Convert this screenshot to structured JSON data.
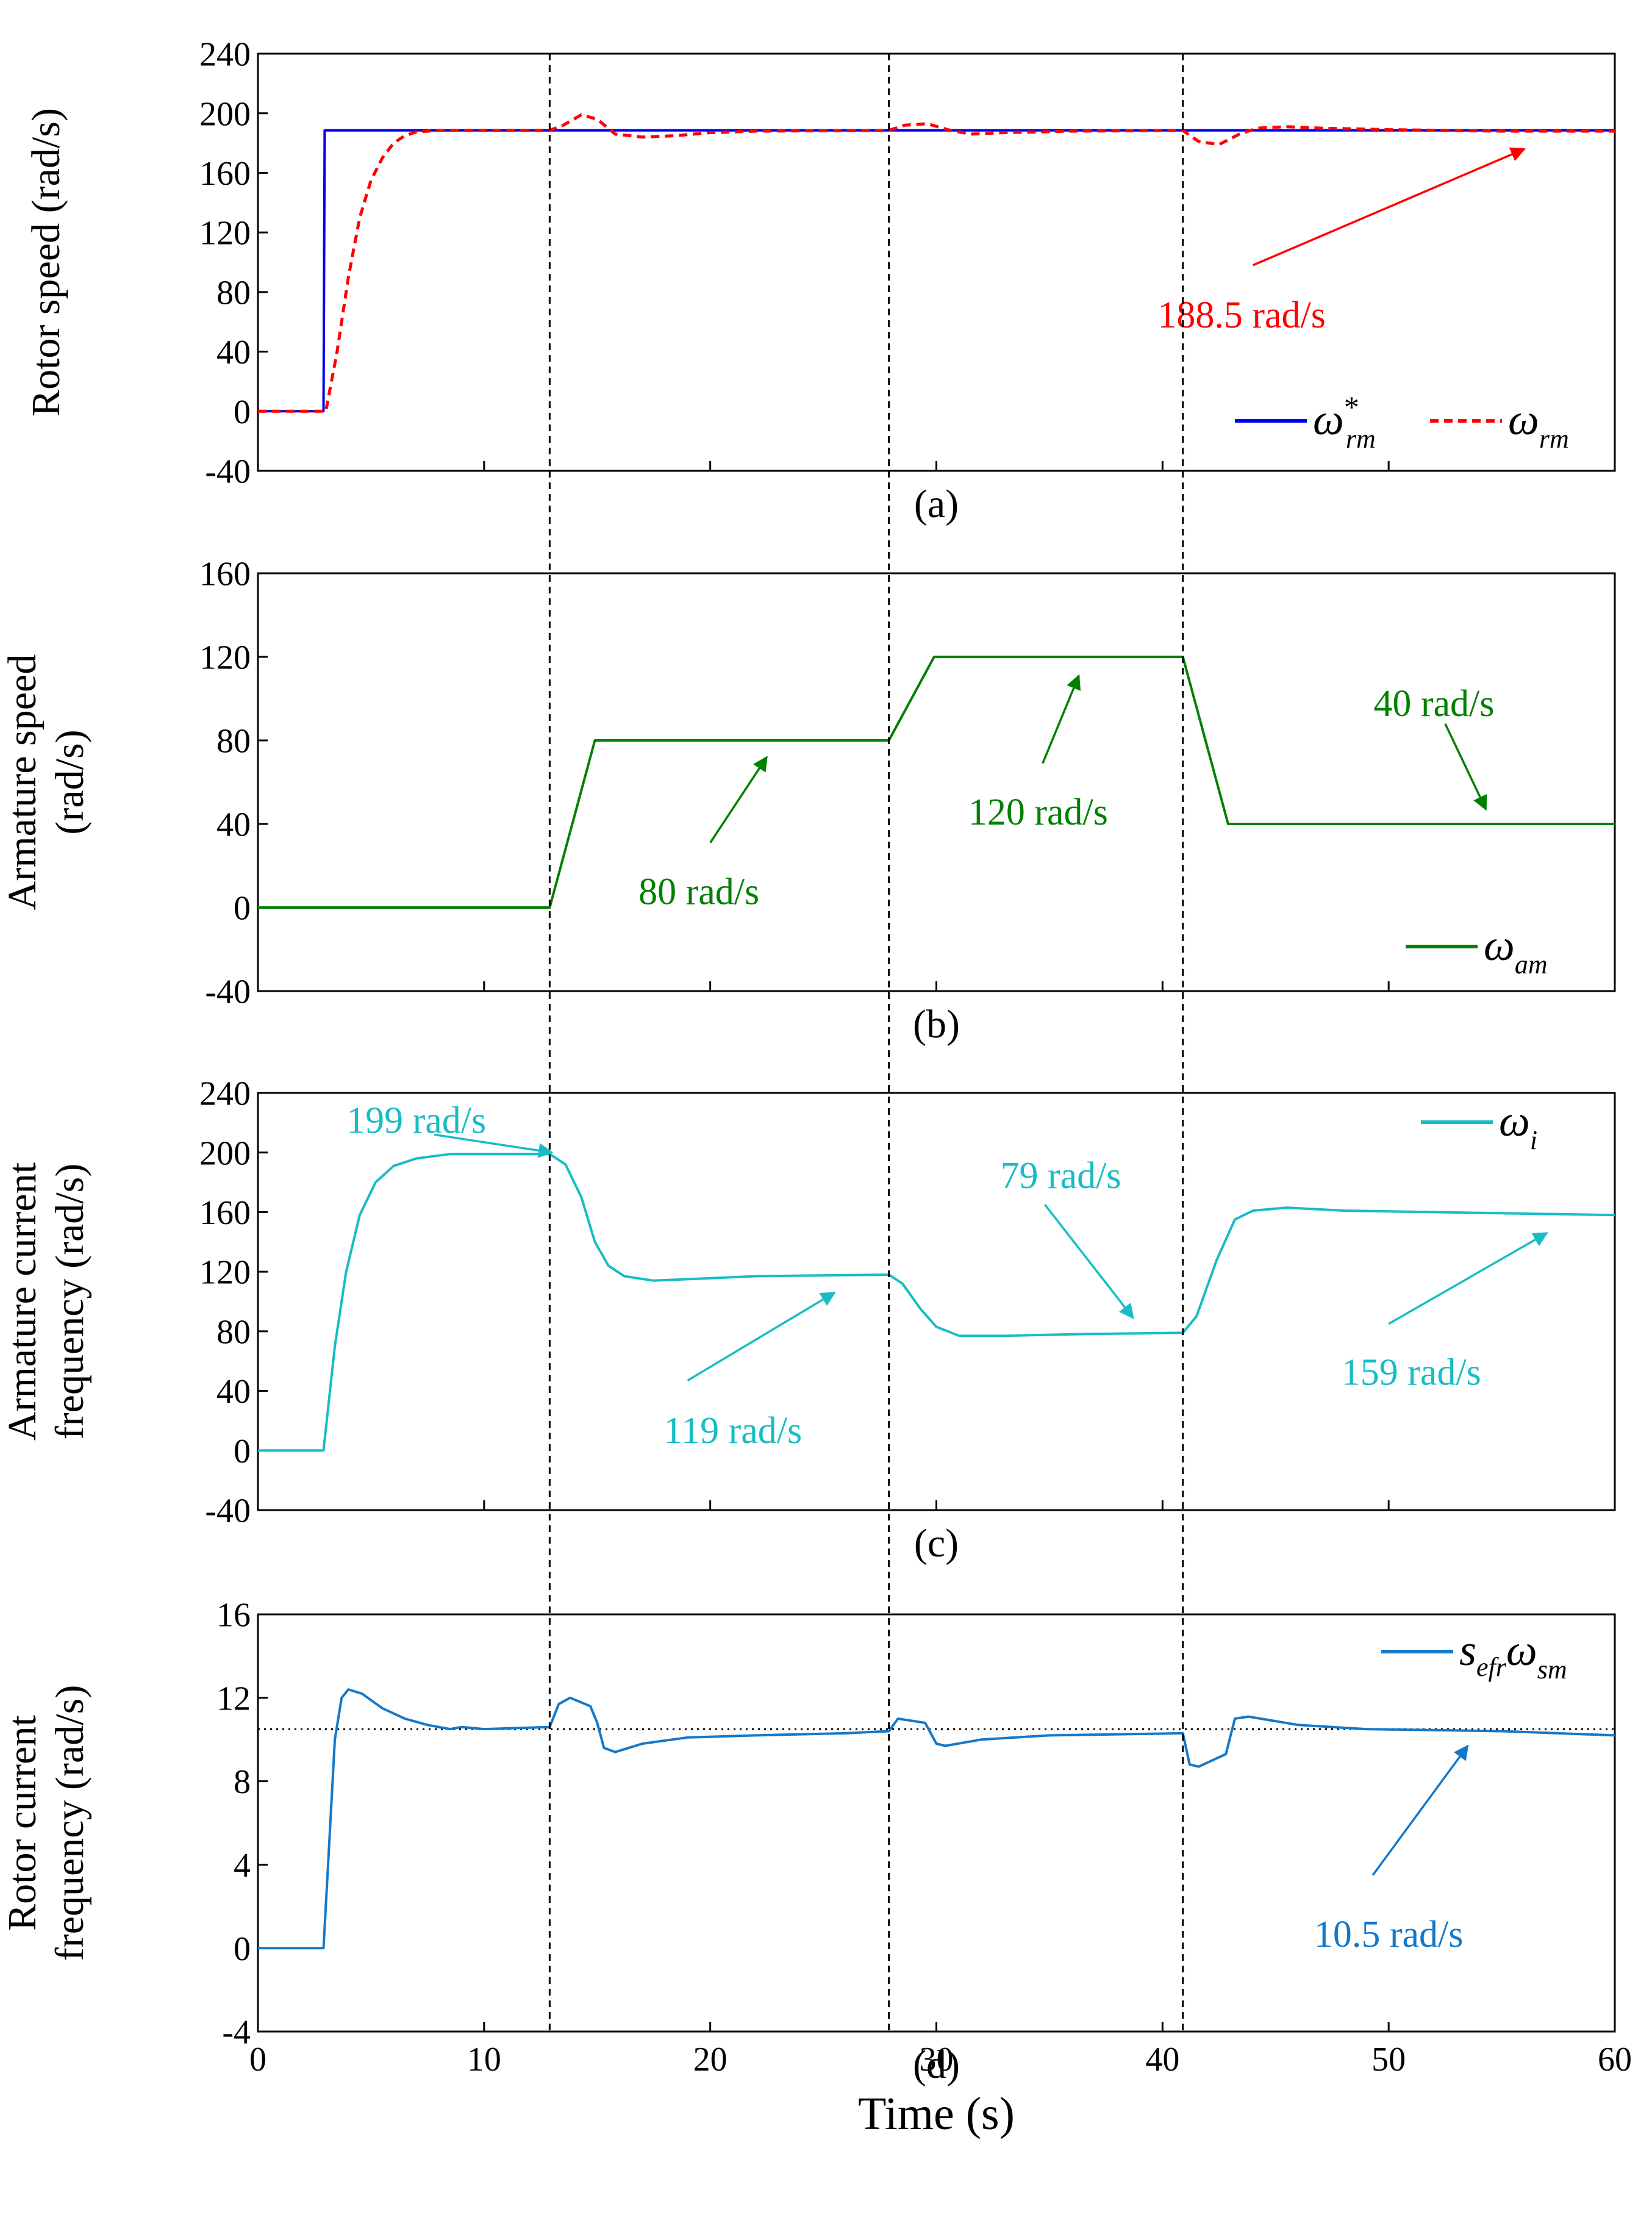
{
  "figure": {
    "xlabel": "Time (s)",
    "x_ticks": [
      "0",
      "10",
      "20",
      "30",
      "40",
      "50",
      "60"
    ],
    "x_range": [
      0,
      60
    ],
    "event_times": [
      12.9,
      27.9,
      40.9
    ],
    "colors": {
      "blue": "#0000ee",
      "red": "#ff0000",
      "green": "#008000",
      "cyan": "#17bdc4",
      "steel": "#1478c8",
      "black": "#000000"
    }
  },
  "chart_data": [
    {
      "type": "line",
      "id": "a",
      "panel_label": "(a)",
      "ylabel": [
        "Rotor speed (rad/s)"
      ],
      "ylim": [
        -40,
        240
      ],
      "y_ticks": [
        "240",
        "200",
        "160",
        "120",
        "80",
        "40",
        "0",
        "-40"
      ],
      "series": [
        {
          "name": "ω*rm",
          "legend": {
            "base": "ω",
            "sup": "*",
            "sub": "rm"
          },
          "style": "solid",
          "color": "#0000ee",
          "points": [
            [
              0,
              0
            ],
            [
              2.9,
              0
            ],
            [
              2.95,
              188.5
            ],
            [
              60,
              188.5
            ]
          ]
        },
        {
          "name": "ωrm",
          "legend": {
            "base": "ω",
            "sup": "",
            "sub": "rm"
          },
          "style": "dashed",
          "color": "#ff0000",
          "points": [
            [
              0,
              0
            ],
            [
              3.0,
              0
            ],
            [
              3.5,
              40
            ],
            [
              4.0,
              90
            ],
            [
              4.5,
              130
            ],
            [
              5.0,
              155
            ],
            [
              5.5,
              170
            ],
            [
              6.0,
              180
            ],
            [
              6.5,
              185
            ],
            [
              7.0,
              187.5
            ],
            [
              8,
              188.5
            ],
            [
              12.9,
              188.5
            ],
            [
              13.5,
              192
            ],
            [
              14.3,
              199
            ],
            [
              15.0,
              196
            ],
            [
              15.8,
              186
            ],
            [
              17,
              184
            ],
            [
              18.5,
              185
            ],
            [
              20,
              187
            ],
            [
              22,
              188
            ],
            [
              27.9,
              188.5
            ],
            [
              28.6,
              192
            ],
            [
              29.6,
              193
            ],
            [
              30.5,
              189
            ],
            [
              31.5,
              186
            ],
            [
              33,
              187
            ],
            [
              36,
              188
            ],
            [
              40.9,
              188.5
            ],
            [
              41.6,
              181
            ],
            [
              42.5,
              179
            ],
            [
              43.4,
              186
            ],
            [
              44.2,
              190
            ],
            [
              45.5,
              191
            ],
            [
              47,
              190
            ],
            [
              50,
              189
            ],
            [
              55,
              188
            ],
            [
              60,
              188
            ]
          ]
        }
      ],
      "annotations": [
        {
          "text": "188.5 rad/s",
          "color": "#ff0000",
          "text_at": [
            43.5,
            65
          ],
          "arrow_from": [
            44.0,
            98
          ],
          "arrow_to": [
            56.0,
            176
          ]
        }
      ]
    },
    {
      "type": "line",
      "id": "b",
      "panel_label": "(b)",
      "ylabel": [
        "Armature speed",
        "(rad/s)"
      ],
      "ylim": [
        -40,
        160
      ],
      "y_ticks": [
        "160",
        "120",
        "80",
        "40",
        "0",
        "-40"
      ],
      "series": [
        {
          "name": "ωam",
          "legend": {
            "base": "ω",
            "sup": "",
            "sub": "am"
          },
          "style": "solid",
          "color": "#008000",
          "points": [
            [
              0,
              0
            ],
            [
              12.9,
              0
            ],
            [
              14.9,
              80
            ],
            [
              27.9,
              80
            ],
            [
              29.9,
              120
            ],
            [
              40.9,
              120
            ],
            [
              42.9,
              40
            ],
            [
              60,
              40
            ]
          ]
        }
      ],
      "annotations": [
        {
          "text": "80 rad/s",
          "color": "#008000",
          "text_at": [
            19.5,
            8
          ],
          "arrow_from": [
            20.0,
            31
          ],
          "arrow_to": [
            22.5,
            72
          ]
        },
        {
          "text": "120 rad/s",
          "color": "#008000",
          "text_at": [
            34.5,
            46
          ],
          "arrow_from": [
            34.7,
            69
          ],
          "arrow_to": [
            36.3,
            111
          ]
        },
        {
          "text": "40 rad/s",
          "color": "#008000",
          "text_at": [
            52.0,
            98
          ],
          "arrow_from": [
            52.5,
            88
          ],
          "arrow_to": [
            54.3,
            47
          ]
        }
      ]
    },
    {
      "type": "line",
      "id": "c",
      "panel_label": "(c)",
      "ylabel": [
        "Armature current",
        "frequency (rad/s)"
      ],
      "ylim": [
        -40,
        240
      ],
      "y_ticks": [
        "240",
        "200",
        "160",
        "120",
        "80",
        "40",
        "0",
        "-40"
      ],
      "series": [
        {
          "name": "ωi",
          "legend": {
            "base": "ω",
            "sup": "",
            "sub": "i"
          },
          "style": "solid",
          "color": "#17bdc4",
          "points": [
            [
              0,
              0
            ],
            [
              2.9,
              0
            ],
            [
              3.4,
              70
            ],
            [
              3.9,
              120
            ],
            [
              4.5,
              158
            ],
            [
              5.2,
              180
            ],
            [
              6.0,
              191
            ],
            [
              7.0,
              196
            ],
            [
              8.5,
              199
            ],
            [
              12.9,
              199
            ],
            [
              13.6,
              192
            ],
            [
              14.3,
              170
            ],
            [
              14.9,
              140
            ],
            [
              15.5,
              124
            ],
            [
              16.2,
              117
            ],
            [
              17.5,
              114
            ],
            [
              19,
              115
            ],
            [
              22,
              117
            ],
            [
              27.9,
              118
            ],
            [
              28.5,
              112
            ],
            [
              29.3,
              95
            ],
            [
              30.0,
              83
            ],
            [
              31.0,
              77
            ],
            [
              33,
              77
            ],
            [
              36,
              78
            ],
            [
              40.9,
              79
            ],
            [
              41.5,
              90
            ],
            [
              42.4,
              128
            ],
            [
              43.2,
              155
            ],
            [
              44.0,
              161
            ],
            [
              45.5,
              163
            ],
            [
              48,
              161
            ],
            [
              52,
              160
            ],
            [
              56,
              159
            ],
            [
              60,
              158
            ]
          ]
        }
      ],
      "annotations": [
        {
          "text": "199 rad/s",
          "color": "#17bdc4",
          "text_at": [
            7.0,
            222
          ],
          "arrow_from": [
            7.8,
            212
          ],
          "arrow_to": [
            13.0,
            200
          ]
        },
        {
          "text": "119 rad/s",
          "color": "#17bdc4",
          "text_at": [
            21.0,
            14
          ],
          "arrow_from": [
            19.0,
            47
          ],
          "arrow_to": [
            25.5,
            106
          ]
        },
        {
          "text": "79 rad/s",
          "color": "#17bdc4",
          "text_at": [
            35.5,
            185
          ],
          "arrow_from": [
            34.8,
            165
          ],
          "arrow_to": [
            38.7,
            89
          ]
        },
        {
          "text": "159 rad/s",
          "color": "#17bdc4",
          "text_at": [
            51.0,
            53
          ],
          "arrow_from": [
            50.0,
            85
          ],
          "arrow_to": [
            57.0,
            146
          ]
        }
      ]
    },
    {
      "type": "line",
      "id": "d",
      "panel_label": "(d)",
      "ylabel": [
        "Rotor current",
        "frequency (rad/s)"
      ],
      "ylim": [
        -4,
        16
      ],
      "y_ticks": [
        "16",
        "12",
        "8",
        "4",
        "0",
        "-4"
      ],
      "reference_line": {
        "y": 10.5,
        "style": "dotted",
        "color": "#000000"
      },
      "series": [
        {
          "name": "sefrωsm",
          "legend": {
            "base": "s",
            "base_sub": "efr",
            "base2": "ω",
            "sub": "sm"
          },
          "style": "solid",
          "color": "#1478c8",
          "points": [
            [
              0,
              0
            ],
            [
              2.9,
              0
            ],
            [
              3.1,
              4
            ],
            [
              3.4,
              10
            ],
            [
              3.7,
              12
            ],
            [
              4.0,
              12.4
            ],
            [
              4.6,
              12.2
            ],
            [
              5.5,
              11.5
            ],
            [
              6.5,
              11
            ],
            [
              7.5,
              10.7
            ],
            [
              8.5,
              10.5
            ],
            [
              9,
              10.6
            ],
            [
              10,
              10.5
            ],
            [
              12.9,
              10.6
            ],
            [
              13.3,
              11.7
            ],
            [
              13.8,
              12
            ],
            [
              14.7,
              11.6
            ],
            [
              15.0,
              10.8
            ],
            [
              15.3,
              9.6
            ],
            [
              15.8,
              9.4
            ],
            [
              17,
              9.8
            ],
            [
              19,
              10.1
            ],
            [
              22,
              10.2
            ],
            [
              26,
              10.3
            ],
            [
              27.9,
              10.4
            ],
            [
              28.3,
              11
            ],
            [
              29.5,
              10.8
            ],
            [
              30.0,
              9.8
            ],
            [
              30.4,
              9.7
            ],
            [
              32,
              10
            ],
            [
              35,
              10.2
            ],
            [
              40.9,
              10.3
            ],
            [
              41.2,
              8.8
            ],
            [
              41.6,
              8.7
            ],
            [
              42.8,
              9.3
            ],
            [
              43.2,
              11
            ],
            [
              43.8,
              11.1
            ],
            [
              46,
              10.7
            ],
            [
              49,
              10.5
            ],
            [
              55,
              10.4
            ],
            [
              60,
              10.2
            ]
          ]
        }
      ],
      "annotations": [
        {
          "text": "10.5 rad/s",
          "color": "#1478c8",
          "text_at": [
            50.0,
            0.7
          ],
          "arrow_from": [
            49.3,
            3.5
          ],
          "arrow_to": [
            53.5,
            9.7
          ]
        }
      ]
    }
  ]
}
